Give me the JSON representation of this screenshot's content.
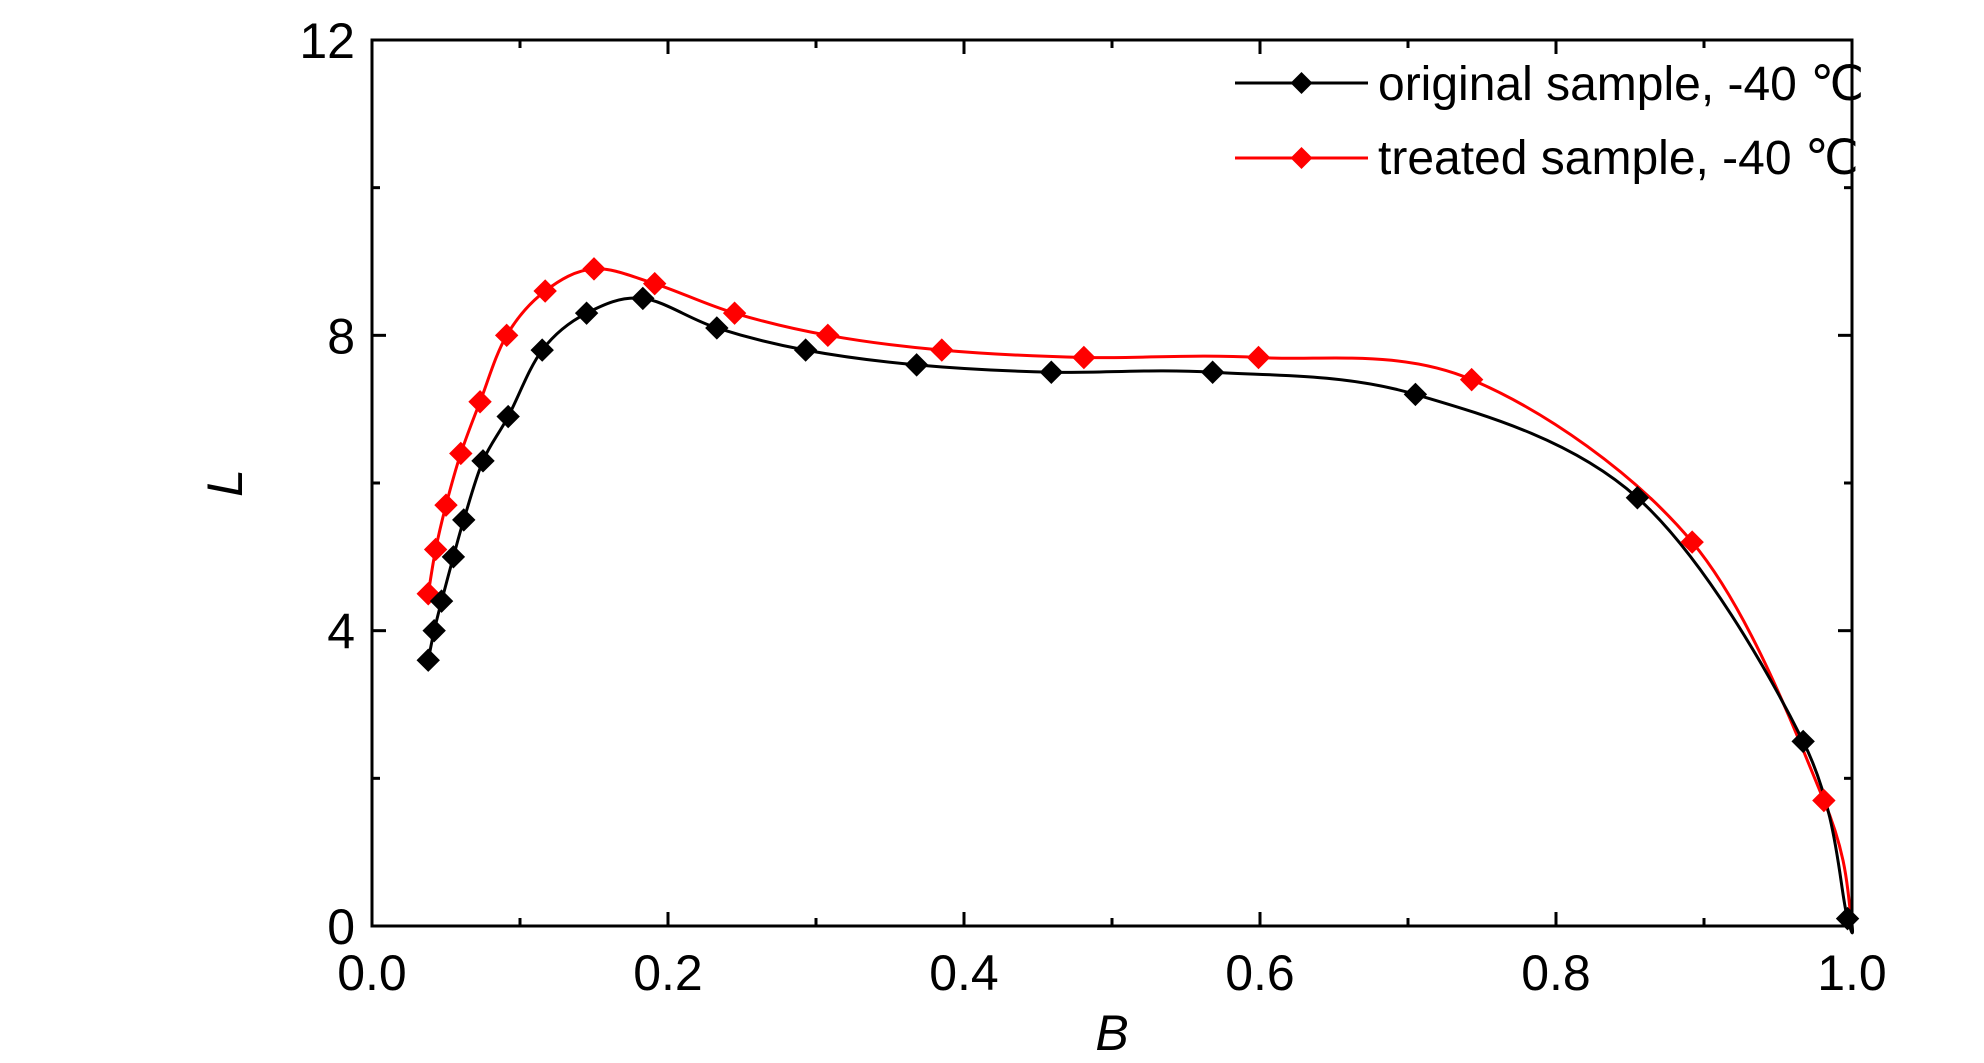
{
  "chart_data": {
    "type": "line",
    "xlabel": "B",
    "ylabel": "L",
    "xlim": [
      0.0,
      1.0
    ],
    "ylim": [
      0,
      12
    ],
    "x_ticks": [
      "0.0",
      "0.2",
      "0.4",
      "0.6",
      "0.8",
      "1.0"
    ],
    "y_ticks": [
      "0",
      "4",
      "8",
      "12"
    ],
    "grid": false,
    "legend_position": "top-right",
    "series": [
      {
        "name": "original sample, -40 ℃",
        "color": "#000000",
        "marker": "diamond",
        "x": [
          0.038,
          0.042,
          0.047,
          0.055,
          0.062,
          0.075,
          0.092,
          0.115,
          0.145,
          0.183,
          0.233,
          0.293,
          0.368,
          0.459,
          0.568,
          0.705,
          0.855,
          0.967,
          0.997
        ],
        "y": [
          3.6,
          4.0,
          4.4,
          5.0,
          5.5,
          6.3,
          6.9,
          7.8,
          8.3,
          8.5,
          8.1,
          7.8,
          7.6,
          7.5,
          7.5,
          7.2,
          5.8,
          2.5,
          0.1
        ]
      },
      {
        "name": "treated sample, -40 ℃",
        "color": "#ff0000",
        "marker": "diamond",
        "x": [
          0.038,
          0.043,
          0.05,
          0.06,
          0.073,
          0.091,
          0.117,
          0.15,
          0.191,
          0.245,
          0.308,
          0.385,
          0.481,
          0.599,
          0.743,
          0.892,
          0.981
        ],
        "y": [
          4.5,
          5.1,
          5.7,
          6.4,
          7.1,
          8.0,
          8.6,
          8.9,
          8.7,
          8.3,
          8.0,
          7.8,
          7.7,
          7.7,
          7.4,
          5.2,
          1.7
        ]
      }
    ]
  }
}
